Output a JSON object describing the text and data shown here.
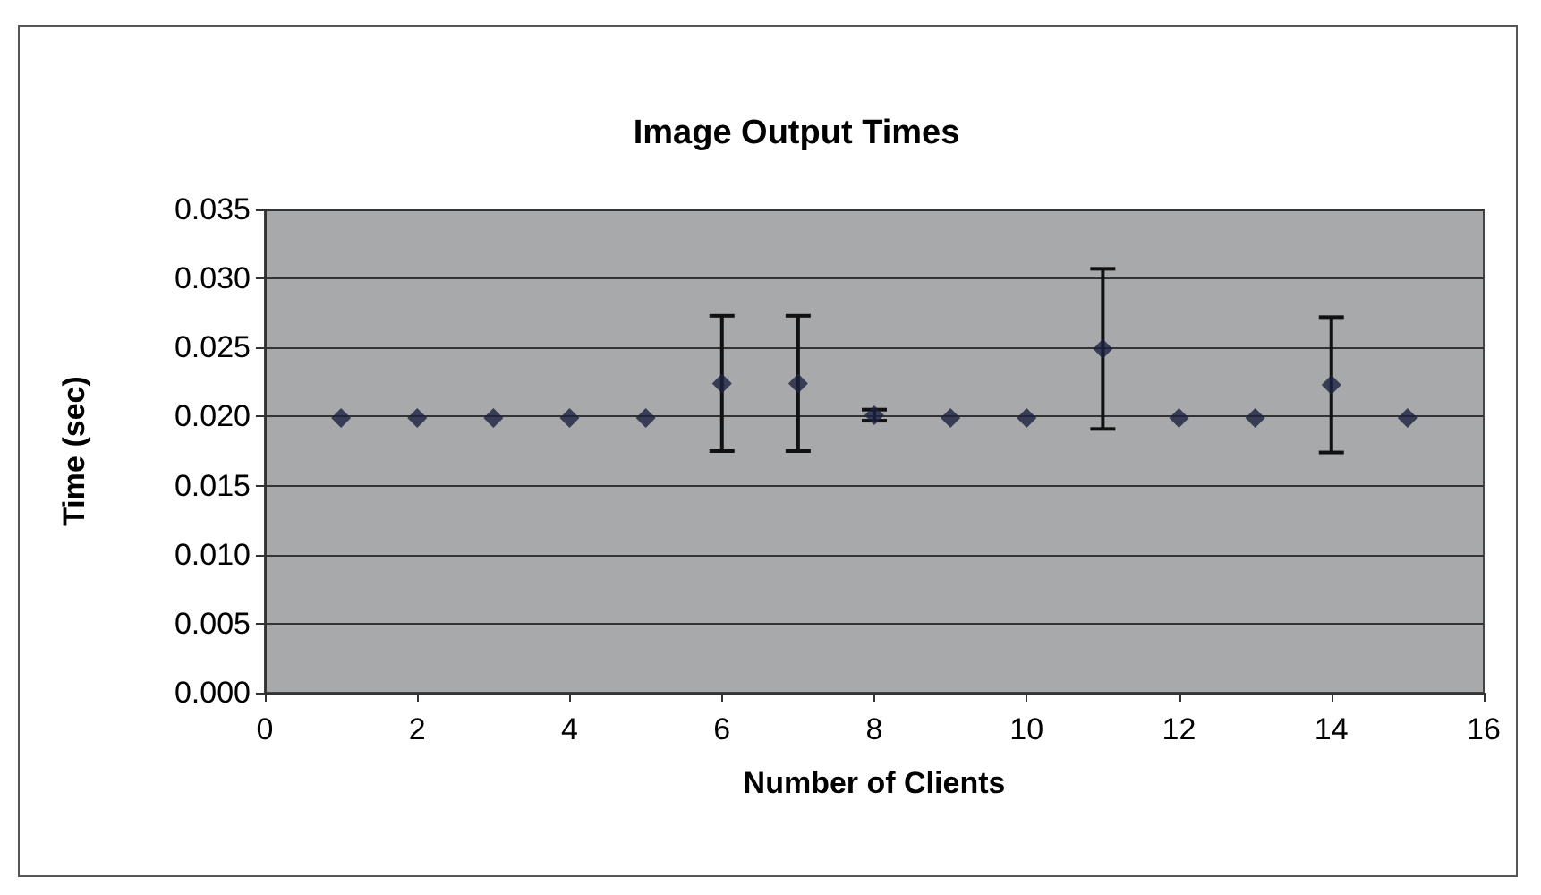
{
  "chart_data": {
    "type": "scatter",
    "title": "Image Output Times",
    "xlabel": "Number of Clients",
    "ylabel": "Time (sec)",
    "x": [
      1,
      2,
      3,
      4,
      5,
      6,
      7,
      8,
      9,
      10,
      11,
      12,
      13,
      14,
      15
    ],
    "series": [
      {
        "color": "#1c2040",
        "values": [
          0.0199,
          0.0199,
          0.0199,
          0.0199,
          0.0199,
          0.0224,
          0.0224,
          0.0201,
          0.0199,
          0.0199,
          0.0249,
          0.0199,
          0.0199,
          0.0223,
          0.0199
        ],
        "errors": [
          null,
          null,
          null,
          null,
          null,
          0.0049,
          0.0049,
          0.0004,
          null,
          null,
          0.0058,
          null,
          null,
          0.0049,
          null
        ]
      }
    ],
    "xlim": [
      0,
      16
    ],
    "xticks": [
      0,
      2,
      4,
      6,
      8,
      10,
      12,
      14,
      16
    ],
    "ylim": [
      0,
      0.035
    ],
    "yticks": [
      {
        "value": 0,
        "label": "0.000"
      },
      {
        "value": 0.005,
        "label": "0.005"
      },
      {
        "value": 0.01,
        "label": "0.010"
      },
      {
        "value": 0.015,
        "label": "0.015"
      },
      {
        "value": 0.02,
        "label": "0.020"
      },
      {
        "value": 0.025,
        "label": "0.025"
      },
      {
        "value": 0.03,
        "label": "0.030"
      },
      {
        "value": 0.035,
        "label": "0.035"
      }
    ],
    "grid": "y",
    "marker": "diamond"
  }
}
